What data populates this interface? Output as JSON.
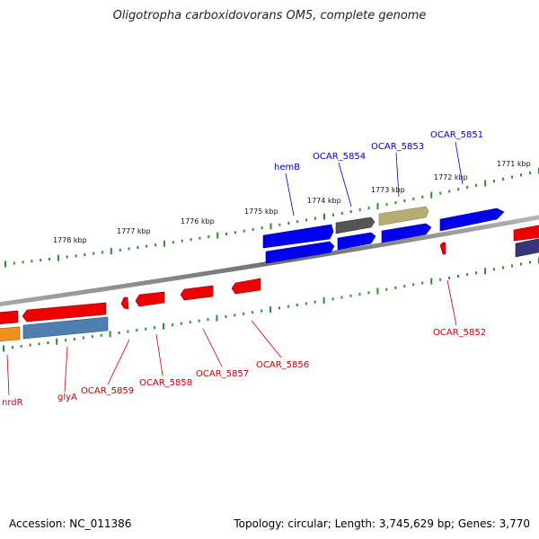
{
  "title": "Oligotropha carboxidovorans OM5, complete genome",
  "footer": {
    "accession": "Accession: NC_011386",
    "stats": "Topology: circular; Length: 3,745,629 bp; Genes: 3,770"
  },
  "colors": {
    "forward_gene": "#0000ee",
    "reverse_gene": "#ee0000",
    "backbone": "#888888",
    "tick": "#2e8b2e"
  },
  "ruler_labels": [
    "1778 kbp",
    "1777 kbp",
    "1776 kbp",
    "1775 kbp",
    "1774 kbp",
    "1773 kbp",
    "1772 kbp",
    "1771 kbp"
  ],
  "gene_labels_upper": [
    "hemB",
    "OCAR_5854",
    "OCAR_5853",
    "OCAR_5851"
  ],
  "gene_labels_lower": [
    "nrdR",
    "glyA",
    "OCAR_5859",
    "OCAR_5858",
    "OCAR_5857",
    "OCAR_5856",
    "OCAR_5852"
  ]
}
